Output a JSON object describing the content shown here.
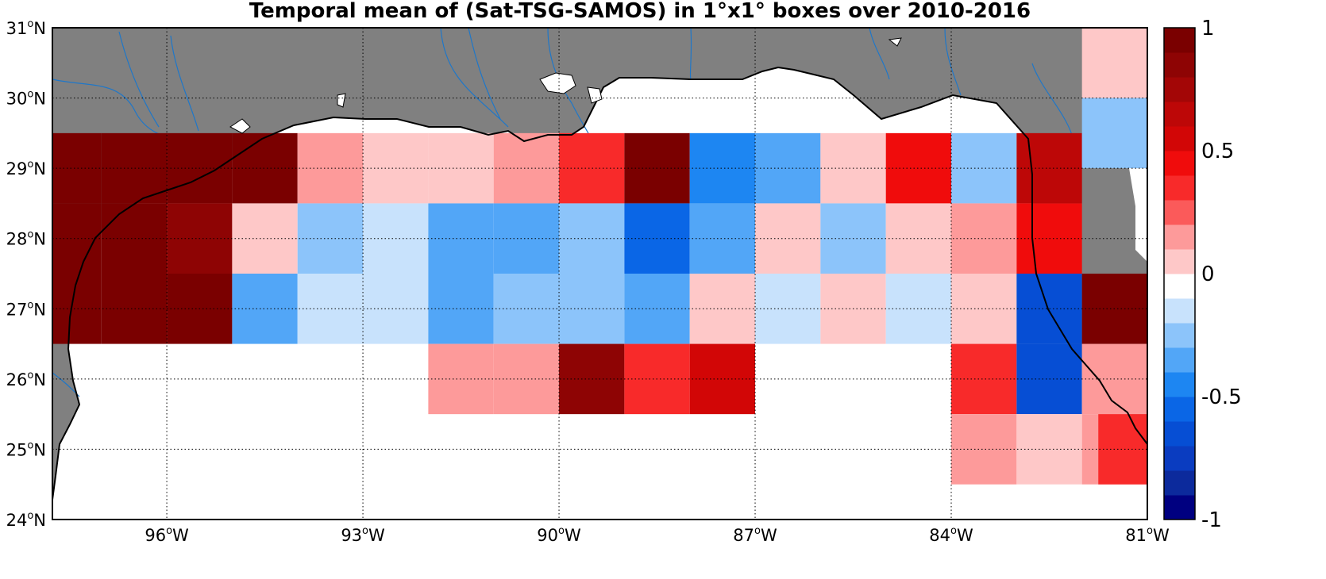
{
  "title": "Temporal mean of (Sat-TSG-SAMOS) in 1°x1° boxes over 2010-2016",
  "colors": {
    "land": "#808080",
    "ocean_nodata": "#ffffff",
    "coast": "#000000",
    "rivers": "#1f77c8"
  },
  "colorbar": {
    "colors": [
      "#000080",
      "#0c2a9c",
      "#0a3cc0",
      "#064ed4",
      "#0a66e6",
      "#1d86f2",
      "#52a6f7",
      "#8cc4fa",
      "#c8e2fc",
      "#ffffff",
      "#fec8c8",
      "#fd9a9a",
      "#fb5a5a",
      "#f82a2a",
      "#f00c0c",
      "#d20606",
      "#bd0707",
      "#a30606",
      "#8e0404",
      "#7a0000"
    ],
    "ticks": [
      {
        "label": "1",
        "value": 1
      },
      {
        "label": "0.5",
        "value": 0.5
      },
      {
        "label": "0",
        "value": 0
      },
      {
        "label": "-0.5",
        "value": -0.5
      },
      {
        "label": "-1",
        "value": -1
      }
    ]
  },
  "xaxis": {
    "lon_range": [
      -97.75,
      -81
    ],
    "ticks": [
      {
        "deg": "96",
        "hem": "W",
        "value": -96
      },
      {
        "deg": "93",
        "hem": "W",
        "value": -93
      },
      {
        "deg": "90",
        "hem": "W",
        "value": -90
      },
      {
        "deg": "87",
        "hem": "W",
        "value": -87
      },
      {
        "deg": "84",
        "hem": "W",
        "value": -84
      },
      {
        "deg": "81",
        "hem": "W",
        "value": -81
      }
    ]
  },
  "yaxis": {
    "lat_range": [
      24,
      31
    ],
    "ticks": [
      {
        "deg": "24",
        "hem": "N",
        "value": 24
      },
      {
        "deg": "25",
        "hem": "N",
        "value": 25
      },
      {
        "deg": "26",
        "hem": "N",
        "value": 26
      },
      {
        "deg": "27",
        "hem": "N",
        "value": 27
      },
      {
        "deg": "28",
        "hem": "N",
        "value": 28
      },
      {
        "deg": "29",
        "hem": "N",
        "value": 29
      },
      {
        "deg": "30",
        "hem": "N",
        "value": 30
      },
      {
        "deg": "31",
        "hem": "N",
        "value": 31
      }
    ]
  },
  "chart_data": {
    "type": "heatmap",
    "title": "Temporal mean of (Sat-TSG-SAMOS) in 1°x1° boxes over 2010-2016",
    "cell_size_deg": 1,
    "color_range": [
      -1,
      1
    ],
    "grid": true,
    "cells": [
      {
        "lon": -97.5,
        "lat": 29.0,
        "value": 0.95
      },
      {
        "lon": -96.5,
        "lat": 29.0,
        "value": 0.95
      },
      {
        "lon": -95.5,
        "lat": 29.0,
        "value": 0.95
      },
      {
        "lon": -94.5,
        "lat": 29.0,
        "value": 0.95
      },
      {
        "lon": -93.5,
        "lat": 29.0,
        "value": 0.15
      },
      {
        "lon": -92.5,
        "lat": 29.0,
        "value": 0.0
      },
      {
        "lon": -91.5,
        "lat": 29.0,
        "value": 0.0
      },
      {
        "lon": -90.5,
        "lat": 29.0,
        "value": 0.15
      },
      {
        "lon": -89.5,
        "lat": 29.0,
        "value": 0.3
      },
      {
        "lon": -88.5,
        "lat": 29.0,
        "value": 0.95
      },
      {
        "lon": -87.5,
        "lat": 29.0,
        "value": -0.5
      },
      {
        "lon": -86.5,
        "lat": 29.0,
        "value": -0.4
      },
      {
        "lon": -85.5,
        "lat": 29.0,
        "value": 0.0
      },
      {
        "lon": -84.5,
        "lat": 29.0,
        "value": 0.45
      },
      {
        "lon": -83.5,
        "lat": 29.0,
        "value": -0.25
      },
      {
        "lon": -82.5,
        "lat": 29.0,
        "value": 0.6
      },
      {
        "lon": -97.5,
        "lat": 28.0,
        "value": 0.95
      },
      {
        "lon": -96.5,
        "lat": 28.0,
        "value": 0.95
      },
      {
        "lon": -95.5,
        "lat": 28.0,
        "value": 0.8
      },
      {
        "lon": -94.5,
        "lat": 28.0,
        "value": 0.0
      },
      {
        "lon": -93.5,
        "lat": 28.0,
        "value": -0.25
      },
      {
        "lon": -92.5,
        "lat": 28.0,
        "value": -0.15
      },
      {
        "lon": -91.5,
        "lat": 28.0,
        "value": -0.4
      },
      {
        "lon": -90.5,
        "lat": 28.0,
        "value": -0.4
      },
      {
        "lon": -89.5,
        "lat": 28.0,
        "value": -0.25
      },
      {
        "lon": -88.5,
        "lat": 28.0,
        "value": -0.55
      },
      {
        "lon": -87.5,
        "lat": 28.0,
        "value": -0.4
      },
      {
        "lon": -86.5,
        "lat": 28.0,
        "value": 0.0
      },
      {
        "lon": -85.5,
        "lat": 28.0,
        "value": -0.25
      },
      {
        "lon": -84.5,
        "lat": 28.0,
        "value": 0.0
      },
      {
        "lon": -83.5,
        "lat": 28.0,
        "value": 0.15
      },
      {
        "lon": -82.5,
        "lat": 28.0,
        "value": 0.45
      },
      {
        "lon": -97.5,
        "lat": 27.0,
        "value": 0.95
      },
      {
        "lon": -96.5,
        "lat": 27.0,
        "value": 0.95
      },
      {
        "lon": -95.5,
        "lat": 27.0,
        "value": 0.95
      },
      {
        "lon": -94.5,
        "lat": 27.0,
        "value": -0.4
      },
      {
        "lon": -93.5,
        "lat": 27.0,
        "value": -0.15
      },
      {
        "lon": -92.5,
        "lat": 27.0,
        "value": -0.15
      },
      {
        "lon": -91.5,
        "lat": 27.0,
        "value": -0.4
      },
      {
        "lon": -90.5,
        "lat": 27.0,
        "value": -0.25
      },
      {
        "lon": -89.5,
        "lat": 27.0,
        "value": -0.25
      },
      {
        "lon": -88.5,
        "lat": 27.0,
        "value": -0.4
      },
      {
        "lon": -87.5,
        "lat": 27.0,
        "value": 0.0
      },
      {
        "lon": -86.5,
        "lat": 27.0,
        "value": -0.15
      },
      {
        "lon": -85.5,
        "lat": 27.0,
        "value": 0.0
      },
      {
        "lon": -84.5,
        "lat": 27.0,
        "value": -0.15
      },
      {
        "lon": -83.5,
        "lat": 27.0,
        "value": 0.0
      },
      {
        "lon": -82.5,
        "lat": 27.0,
        "value": -0.65
      },
      {
        "lon": -81.5,
        "lat": 27.0,
        "value": 0.95
      },
      {
        "lon": -91.5,
        "lat": 26.0,
        "value": 0.15
      },
      {
        "lon": -90.5,
        "lat": 26.0,
        "value": 0.15
      },
      {
        "lon": -89.5,
        "lat": 26.0,
        "value": 0.8
      },
      {
        "lon": -88.5,
        "lat": 26.0,
        "value": 0.3
      },
      {
        "lon": -87.5,
        "lat": 26.0,
        "value": 0.55
      },
      {
        "lon": -83.5,
        "lat": 26.0,
        "value": 0.3
      },
      {
        "lon": -82.5,
        "lat": 26.0,
        "value": -0.7
      },
      {
        "lon": -81.5,
        "lat": 26.0,
        "value": 0.15
      },
      {
        "lon": -83.5,
        "lat": 25.0,
        "value": 0.15
      },
      {
        "lon": -82.5,
        "lat": 25.0,
        "value": 0.0
      },
      {
        "lon": -81.5,
        "lat": 25.0,
        "value": 0.15
      },
      {
        "lon": -81.25,
        "lat": 25.0,
        "value": 0.3
      },
      {
        "lon": -81.5,
        "lat": 30.5,
        "value": 0.0
      },
      {
        "lon": -81.5,
        "lat": 29.5,
        "value": -0.25
      }
    ]
  }
}
